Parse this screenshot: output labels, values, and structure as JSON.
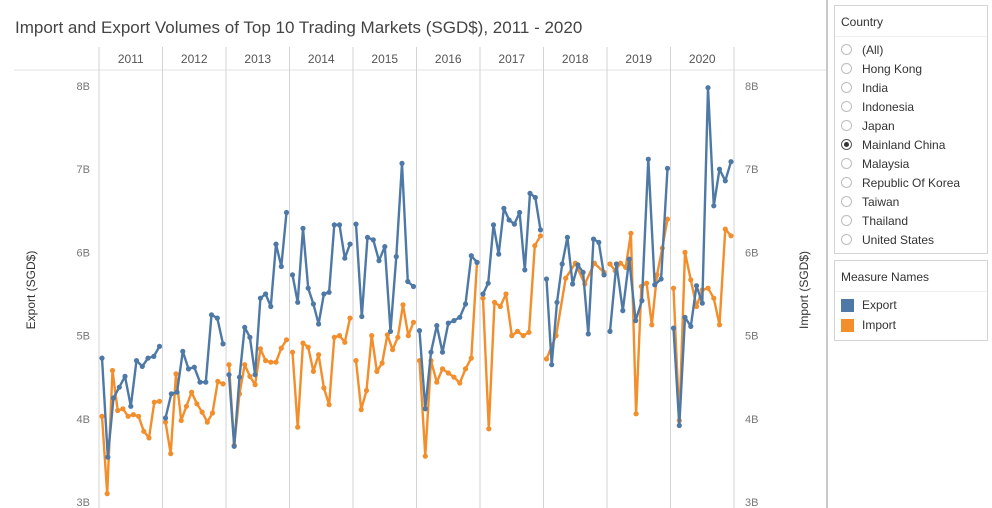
{
  "colors": {
    "export": "#4e79a7",
    "import": "#f28e2b"
  },
  "filter": {
    "title": "Country",
    "selected": "Mainland China",
    "options": [
      "(All)",
      "Hong Kong",
      "India",
      "Indonesia",
      "Japan",
      "Mainland China",
      "Malaysia",
      "Republic Of Korea",
      "Taiwan",
      "Thailand",
      "United States"
    ]
  },
  "legend": {
    "title": "Measure Names",
    "items": [
      {
        "label": "Export",
        "color": "#4e79a7"
      },
      {
        "label": "Import",
        "color": "#f28e2b"
      }
    ]
  },
  "chart_data": {
    "type": "line",
    "title": "Import and Export Volumes of Top 10 Trading Markets (SGD$), 2011 - 2020",
    "xlabel": "",
    "ylabel": "Export (SGD$)",
    "ylabel_right": "Import (SGD$)",
    "ylim": [
      3,
      8
    ],
    "yticks": [
      "3B",
      "4B",
      "5B",
      "6B",
      "7B",
      "8B"
    ],
    "categories": [
      "2011",
      "2012",
      "2013",
      "2014",
      "2015",
      "2016",
      "2017",
      "2018",
      "2019",
      "2020"
    ],
    "grid": "vertical year dividers",
    "series": [
      {
        "name": "Export",
        "values": [
          [
            4.73,
            3.54,
            4.25,
            4.38,
            4.51,
            4.15,
            4.7,
            4.63,
            4.73,
            4.75,
            4.87
          ],
          [
            4.01,
            4.3,
            4.32,
            4.81,
            4.6,
            4.62,
            4.44,
            4.44,
            5.25,
            5.21,
            4.9
          ],
          [
            4.53,
            3.67,
            4.5,
            5.1,
            4.98,
            4.53,
            5.45,
            5.5,
            5.35,
            6.1,
            5.83,
            6.48
          ],
          [
            5.73,
            5.4,
            6.29,
            5.57,
            5.38,
            5.14,
            5.5,
            5.52,
            6.33,
            6.33,
            5.93,
            6.1
          ],
          [
            6.34,
            5.23,
            6.18,
            6.15,
            5.9,
            6.07,
            5.05,
            5.95,
            7.07,
            5.65,
            5.59
          ],
          [
            5.06,
            4.12,
            4.8,
            5.12,
            4.8,
            5.15,
            5.18,
            5.22,
            5.38,
            5.96,
            5.88
          ],
          [
            5.5,
            5.63,
            6.33,
            5.98,
            6.53,
            6.39,
            6.34,
            6.48,
            5.79,
            6.71,
            6.66,
            6.27
          ],
          [
            5.68,
            4.65,
            5.4,
            5.86,
            6.18,
            5.62,
            5.85,
            5.76,
            5.02,
            6.16,
            6.12,
            5.73
          ],
          [
            5.05,
            5.86,
            5.3,
            5.92,
            5.18,
            5.42,
            7.12,
            5.61,
            5.68,
            7.01
          ],
          [
            5.09,
            3.92,
            5.22,
            5.11,
            5.6,
            5.39,
            7.98,
            6.56,
            7.0,
            6.86,
            7.09
          ]
        ]
      },
      {
        "name": "Import",
        "values": [
          [
            4.03,
            3.1,
            4.58,
            4.1,
            4.12,
            4.03,
            4.05,
            4.03,
            3.85,
            3.77,
            4.2,
            4.21
          ],
          [
            3.96,
            3.58,
            4.54,
            3.98,
            4.15,
            4.32,
            4.18,
            4.08,
            3.96,
            4.07,
            4.45,
            4.42
          ],
          [
            4.65,
            3.68,
            4.3,
            4.65,
            4.51,
            4.41,
            4.84,
            4.7,
            4.68,
            4.68,
            4.85,
            4.95
          ],
          [
            4.8,
            3.9,
            4.91,
            4.86,
            4.57,
            4.77,
            4.37,
            4.17,
            4.98,
            5.0,
            4.92,
            5.21
          ],
          [
            4.7,
            4.11,
            4.34,
            5.0,
            4.57,
            4.67,
            5.01,
            4.83,
            4.98,
            5.37,
            5.0,
            5.16
          ],
          [
            4.7,
            3.55,
            4.7,
            4.44,
            4.6,
            4.55,
            4.5,
            4.43,
            4.6,
            4.73,
            5.88
          ],
          [
            5.45,
            3.88,
            5.4,
            5.35,
            5.5,
            5.0,
            5.05,
            5.0,
            5.04,
            6.08,
            6.2
          ],
          [
            4.72,
            5.0,
            5.69,
            5.87,
            5.62,
            5.87,
            5.76
          ],
          [
            5.86,
            5.78,
            5.87,
            5.82,
            6.23,
            4.06,
            5.59,
            5.63,
            5.13,
            5.73,
            6.05,
            6.4
          ],
          [
            5.57,
            3.98,
            6.0,
            5.67,
            5.35,
            5.55,
            5.57,
            5.45,
            5.13,
            6.28,
            6.2
          ]
        ]
      }
    ]
  }
}
